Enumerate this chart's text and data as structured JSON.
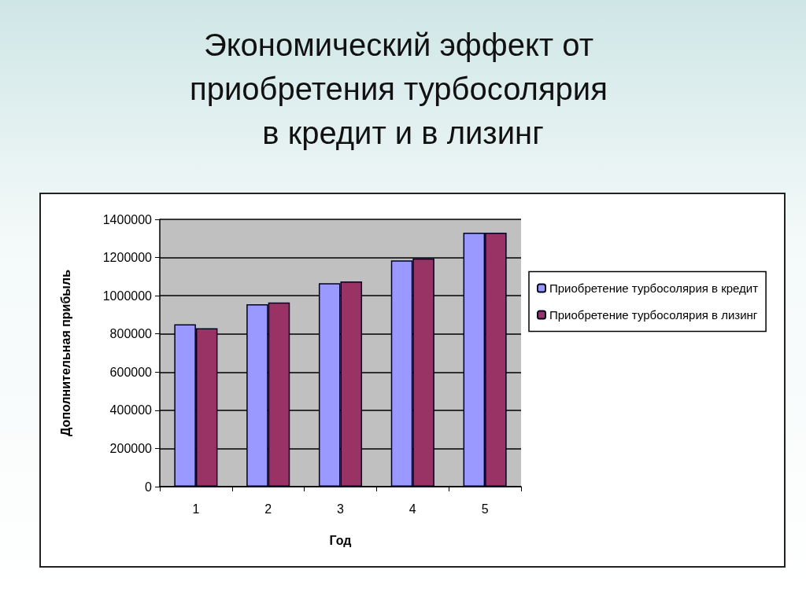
{
  "chart_data": {
    "type": "bar",
    "title": "Экономический эффект от приобретения турбосолярия в кредит и в лизинг",
    "xlabel": "Год",
    "ylabel": "Дополнительная прибыль",
    "categories": [
      "1",
      "2",
      "3",
      "4",
      "5"
    ],
    "series": [
      {
        "name": "Приобретение турбосолярия в кредит",
        "color": "#9999ff",
        "values": [
          850000,
          955000,
          1065000,
          1185000,
          1330000
        ]
      },
      {
        "name": "Приобретение турбосолярия в лизинг",
        "color": "#993366",
        "values": [
          830000,
          965000,
          1075000,
          1195000,
          1330000
        ]
      }
    ],
    "ylim": [
      0,
      1400000
    ],
    "yticks": [
      0,
      200000,
      400000,
      600000,
      800000,
      1000000,
      1200000,
      1400000
    ],
    "grid": "y",
    "legend": "right"
  }
}
